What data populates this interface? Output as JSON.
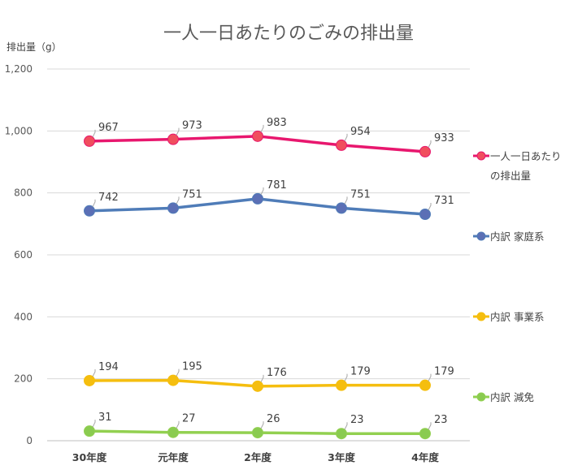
{
  "chart_data": {
    "type": "line",
    "title": "一人一日あたりのごみの排出量",
    "ylabel": "排出量（g）",
    "xlabel": "",
    "ylim": [
      0,
      1200
    ],
    "yticks": [
      "0",
      "200",
      "400",
      "600",
      "800",
      "1,000",
      "1,200"
    ],
    "ytick_values": [
      0,
      200,
      400,
      600,
      800,
      1000,
      1200
    ],
    "categories": [
      "30年度",
      "元年度",
      "2年度",
      "3年度",
      "4年度"
    ],
    "grid": true,
    "legend_position": "right",
    "series": [
      {
        "name": "一人一日あたりの排出量",
        "legend_lines": [
          "一人一日あたり",
          "の排出量"
        ],
        "color": "#E8176E",
        "marker": "#F04E5E",
        "values": [
          967,
          973,
          983,
          954,
          933
        ]
      },
      {
        "name": "内訳 家庭系",
        "legend_lines": [
          "内訳 家庭系"
        ],
        "color": "#4F7CB8",
        "marker": "#5B6FB5",
        "values": [
          742,
          751,
          781,
          751,
          731
        ]
      },
      {
        "name": "内訳 事業系",
        "legend_lines": [
          "内訳 事業系"
        ],
        "color": "#F5BE0F",
        "marker": "#F5BE0F",
        "values": [
          194,
          195,
          176,
          179,
          179
        ]
      },
      {
        "name": "内訳 減免",
        "legend_lines": [
          "内訳 減免"
        ],
        "color": "#92D050",
        "marker": "#8ACB50",
        "values": [
          31,
          27,
          26,
          23,
          23
        ]
      }
    ]
  }
}
